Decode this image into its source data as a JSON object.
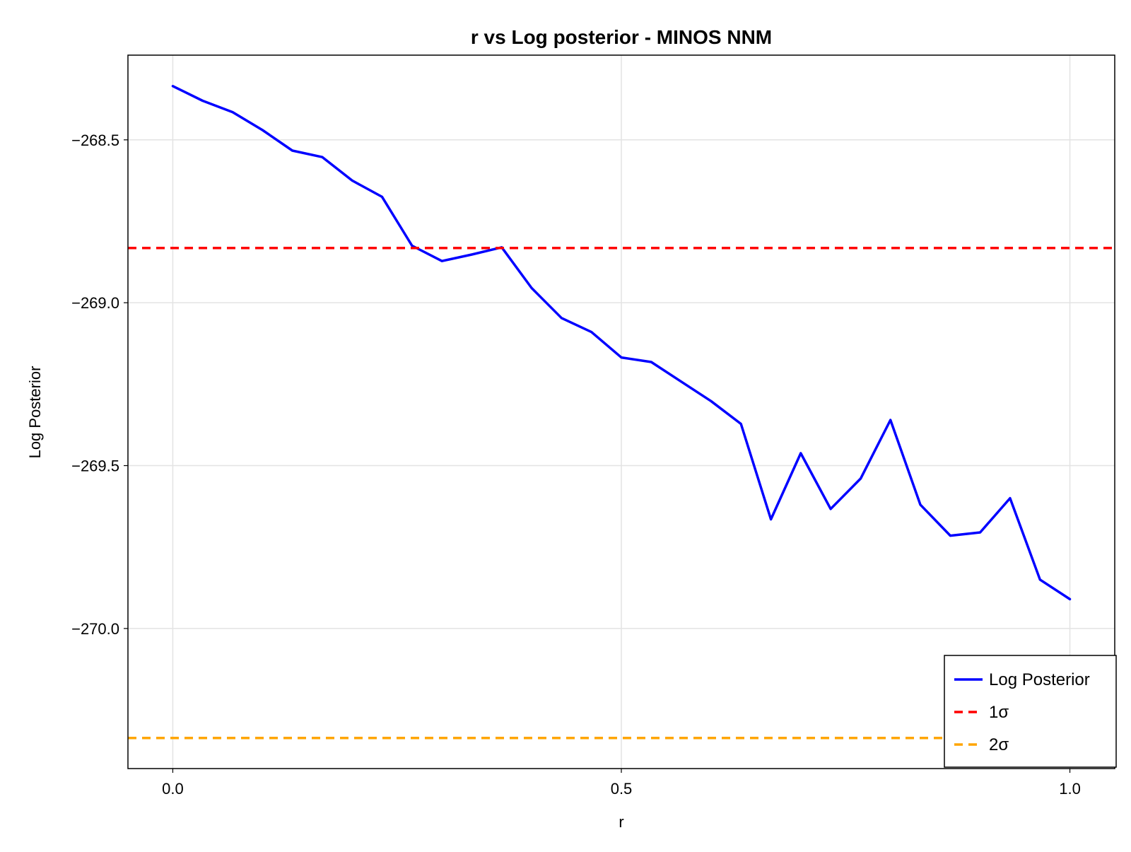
{
  "chart_data": {
    "type": "line",
    "title": "r vs Log posterior - MINOS NNM",
    "xlabel": "r",
    "ylabel": "Log Posterior",
    "xlim": [
      -0.05,
      1.05
    ],
    "ylim": [
      -270.43,
      -268.24
    ],
    "xticks": [
      0.0,
      0.5,
      1.0
    ],
    "xtick_labels": [
      "0.0",
      "0.5",
      "1.0"
    ],
    "yticks": [
      -268.5,
      -269.0,
      -269.5,
      -270.0
    ],
    "ytick_labels": [
      "−268.5",
      "−269.0",
      "−269.5",
      "−270.0"
    ],
    "grid": true,
    "legend_position": "bottom-right",
    "series": [
      {
        "name": "Log Posterior",
        "style": "solid",
        "color": "#0000ff",
        "x": [
          0.0,
          0.0333,
          0.0667,
          0.1,
          0.1333,
          0.1667,
          0.2,
          0.2333,
          0.2667,
          0.3,
          0.3333,
          0.3667,
          0.4,
          0.4333,
          0.4667,
          0.5,
          0.5333,
          0.5667,
          0.6,
          0.6333,
          0.6667,
          0.7,
          0.7333,
          0.7667,
          0.8,
          0.8333,
          0.8667,
          0.9,
          0.9333,
          0.9667,
          1.0
        ],
        "y": [
          -268.335,
          -268.38,
          -268.415,
          -268.47,
          -268.533,
          -268.553,
          -268.625,
          -268.675,
          -268.825,
          -268.872,
          -268.852,
          -268.83,
          -268.955,
          -269.047,
          -269.09,
          -269.168,
          -269.182,
          -269.242,
          -269.302,
          -269.372,
          -269.665,
          -269.462,
          -269.633,
          -269.54,
          -269.36,
          -269.62,
          -269.715,
          -269.705,
          -269.6,
          -269.85,
          -269.91
        ]
      },
      {
        "name": "1σ",
        "style": "dashed",
        "color": "#ff0000",
        "hline": -268.832
      },
      {
        "name": "2σ",
        "style": "dashed",
        "color": "#ffa500",
        "hline": -270.336
      }
    ]
  }
}
